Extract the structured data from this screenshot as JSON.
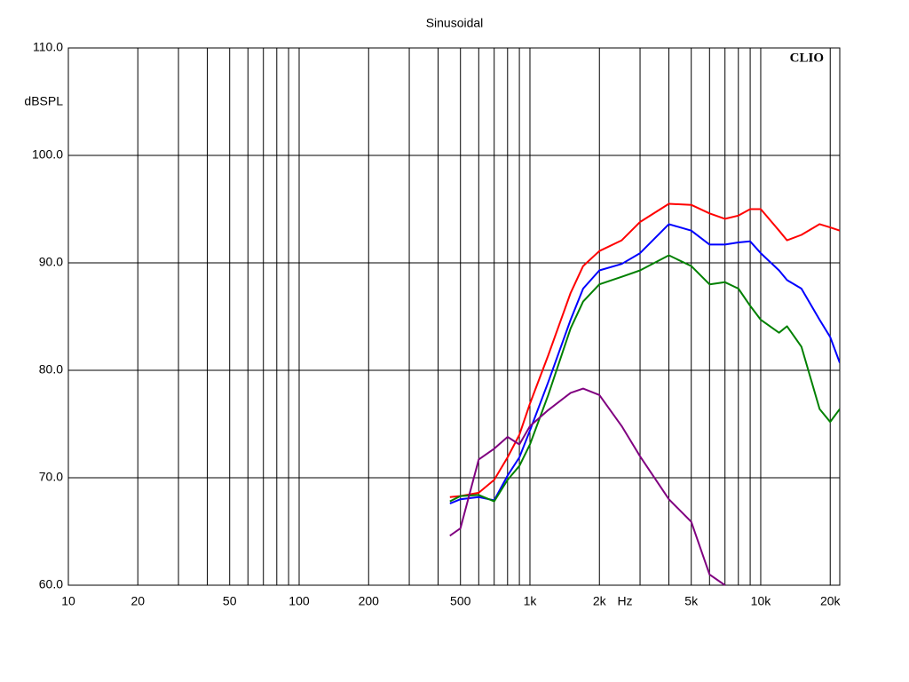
{
  "chart_data": {
    "type": "line",
    "title": "Sinusoidal",
    "y_label": "dBSPL",
    "x_unit_label": "Hz",
    "brand": "CLIO",
    "x_scale": "log",
    "grid": true,
    "xlim": [
      10,
      22000
    ],
    "ylim": [
      60,
      110
    ],
    "xticks": [
      10,
      20,
      50,
      100,
      200,
      500,
      {
        "value": 1000,
        "label": "1k"
      },
      {
        "value": 2000,
        "label": "2k"
      },
      {
        "value": 5000,
        "label": "5k"
      },
      {
        "value": 10000,
        "label": "10k"
      },
      {
        "value": 20000,
        "label": "20k"
      }
    ],
    "x_minor_grid": [
      30,
      40,
      60,
      70,
      80,
      90,
      300,
      400,
      600,
      700,
      800,
      900,
      3000,
      4000,
      6000,
      7000,
      8000,
      9000
    ],
    "yticks": [
      {
        "value": 60,
        "label": "60.0"
      },
      {
        "value": 70,
        "label": "70.0"
      },
      {
        "value": 80,
        "label": "80.0"
      },
      {
        "value": 90,
        "label": "90.0"
      },
      {
        "value": 100,
        "label": "100.0"
      },
      {
        "value": 110,
        "label": "110.0"
      }
    ],
    "x": [
      450,
      500,
      600,
      700,
      800,
      900,
      1000,
      1200,
      1500,
      1700,
      2000,
      2500,
      3000,
      4000,
      5000,
      6000,
      7000,
      8000,
      9000,
      10000,
      12000,
      13000,
      15000,
      18000,
      20000,
      22000
    ],
    "series": [
      {
        "color": "#ff0000",
        "values": [
          68.2,
          68.3,
          68.6,
          69.8,
          71.9,
          74.0,
          76.9,
          81.4,
          87.2,
          89.7,
          91.1,
          92.1,
          93.8,
          95.5,
          95.4,
          94.6,
          94.1,
          94.4,
          95.0,
          95.0,
          93.0,
          92.1,
          92.6,
          93.6,
          93.3,
          93.0
        ]
      },
      {
        "color": "#0000ff",
        "values": [
          67.6,
          68.0,
          68.2,
          67.9,
          70.2,
          71.9,
          74.4,
          78.9,
          84.7,
          87.6,
          89.3,
          89.9,
          90.9,
          93.6,
          93.0,
          91.7,
          91.7,
          91.9,
          92.0,
          90.9,
          89.3,
          88.4,
          87.6,
          84.7,
          83.1,
          80.7
        ]
      },
      {
        "color": "#008000",
        "values": [
          67.8,
          68.3,
          68.4,
          67.8,
          69.8,
          71.1,
          73.1,
          77.7,
          83.9,
          86.4,
          88.0,
          88.7,
          89.3,
          90.7,
          89.7,
          88.0,
          88.2,
          87.6,
          86.0,
          84.7,
          83.5,
          84.1,
          82.2,
          76.4,
          75.2,
          76.4
        ]
      },
      {
        "color": "#800080",
        "values": [
          64.6,
          65.3,
          71.7,
          72.7,
          73.8,
          73.1,
          74.8,
          76.3,
          77.9,
          78.3,
          77.7,
          74.8,
          72.0,
          68.0,
          65.9,
          61.0,
          60.0,
          null,
          null,
          null,
          null,
          null,
          null,
          null,
          null,
          null
        ]
      }
    ]
  }
}
